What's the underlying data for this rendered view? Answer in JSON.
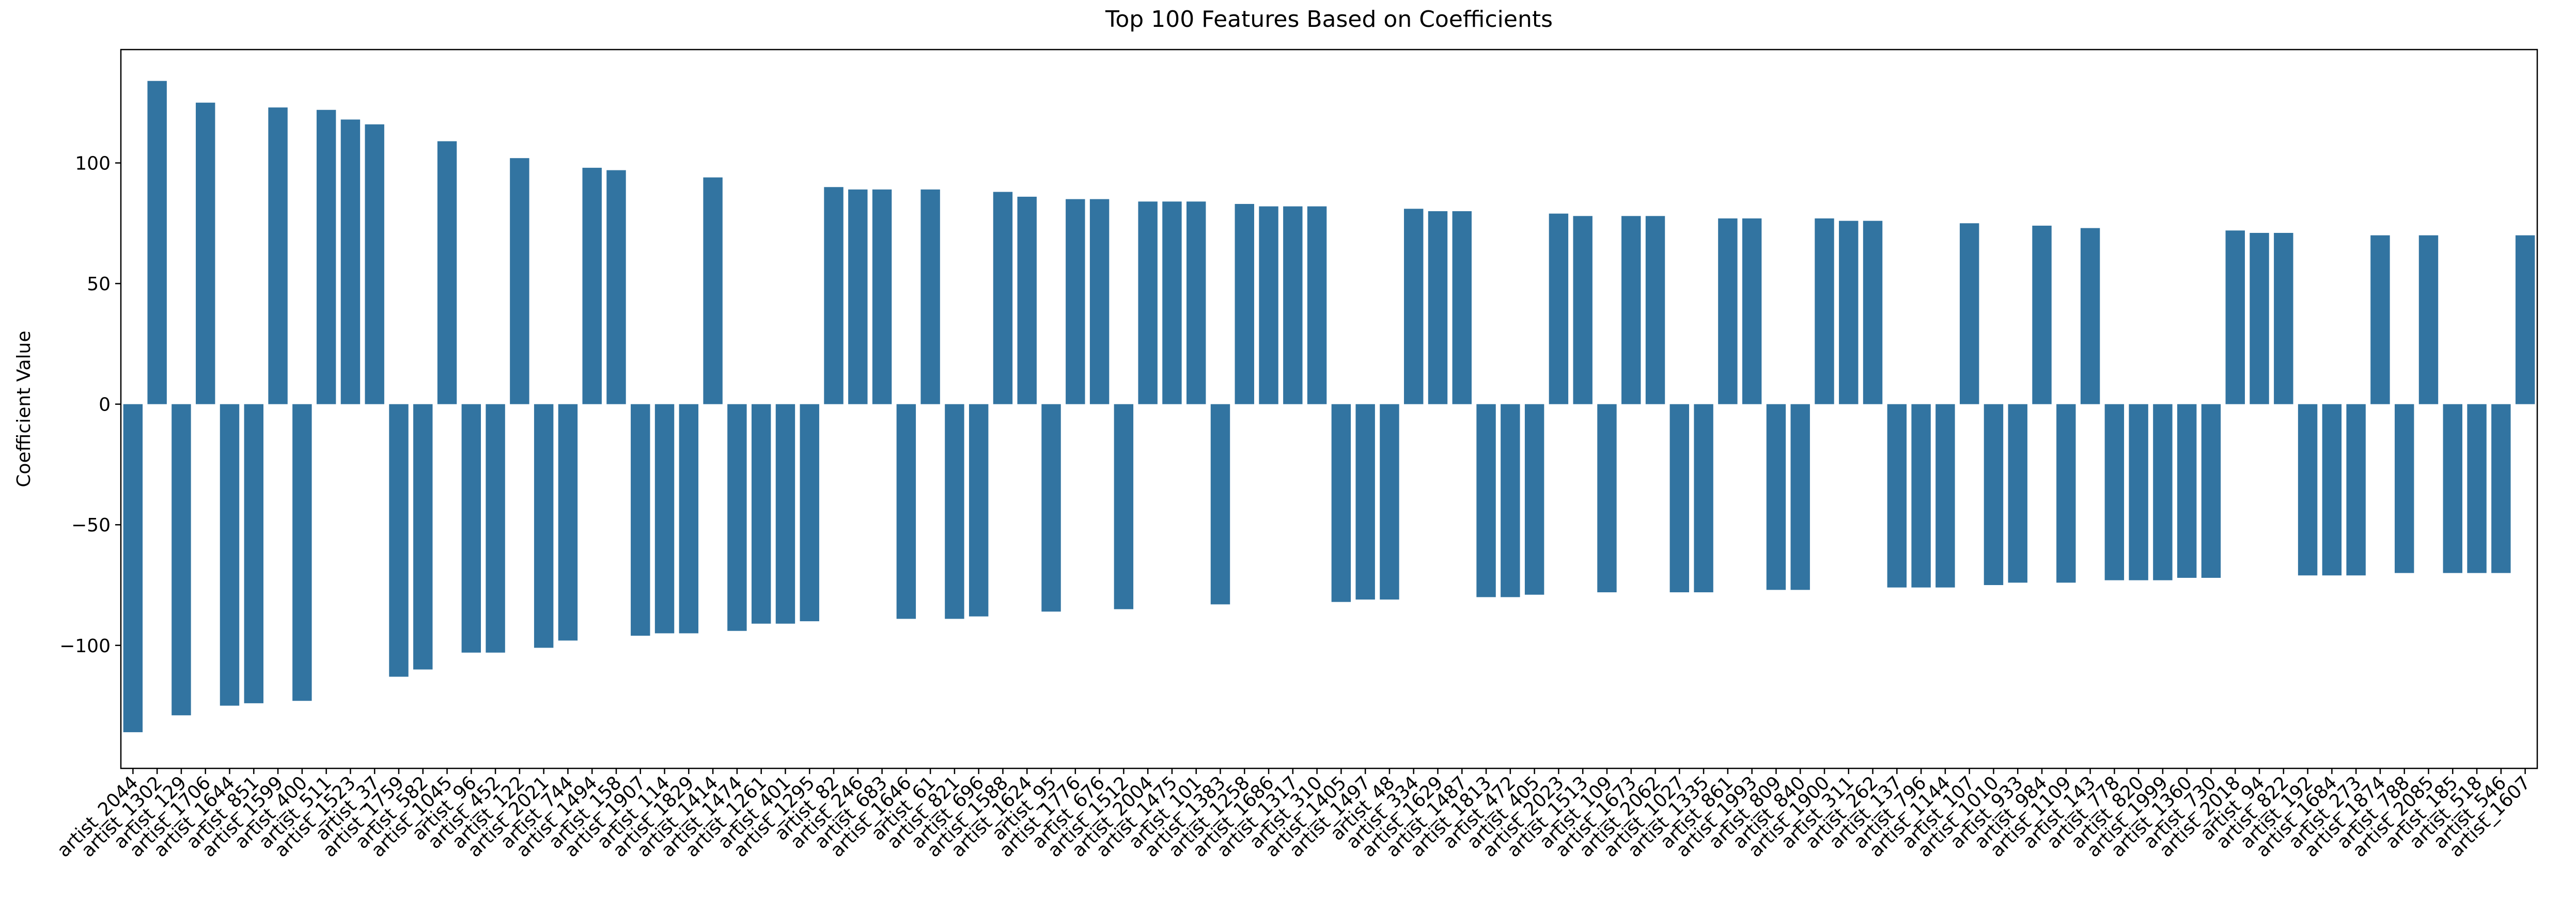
{
  "chart_data": {
    "type": "bar",
    "title": "Top 100 Features Based on Coefficients",
    "y_label": "Coefficient Value",
    "color": "#3274a1",
    "categories": [
      "artist_2044",
      "artist_1302",
      "artist_129",
      "artist_1706",
      "artist_1644",
      "artist_851",
      "artist_1599",
      "artist_400",
      "artist_511",
      "artist_1523",
      "artist_37",
      "artist_1759",
      "artist_582",
      "artist_1045",
      "artist_96",
      "artist_452",
      "artist_122",
      "artist_2021",
      "artist_744",
      "artist_1494",
      "artist_158",
      "artist_1907",
      "artist_114",
      "artist_1829",
      "artist_1414",
      "artist_1474",
      "artist_1261",
      "artist_401",
      "artist_1295",
      "artist_82",
      "artist_246",
      "artist_683",
      "artist_1646",
      "artist_61",
      "artist_821",
      "artist_696",
      "artist_1588",
      "artist_1624",
      "artist_95",
      "artist_1776",
      "artist_676",
      "artist_1512",
      "artist_2004",
      "artist_1475",
      "artist_101",
      "artist_1383",
      "artist_1258",
      "artist_1686",
      "artist_1317",
      "artist_310",
      "artist_1405",
      "artist_1497",
      "artist_48",
      "artist_334",
      "artist_1629",
      "artist_1487",
      "artist_1813",
      "artist_472",
      "artist_405",
      "artist_2023",
      "artist_1513",
      "artist_109",
      "artist_1673",
      "artist_2062",
      "artist_1027",
      "artist_1335",
      "artist_861",
      "artist_1993",
      "artist_809",
      "artist_840",
      "artist_1900",
      "artist_311",
      "artist_262",
      "artist_137",
      "artist_796",
      "artist_1144",
      "artist_107",
      "artist_1010",
      "artist_933",
      "artist_984",
      "artist_1109",
      "artist_143",
      "artist_778",
      "artist_820",
      "artist_1999",
      "artist_1360",
      "artist_730",
      "artist_2018",
      "artist_94",
      "artist_822",
      "artist_192",
      "artist_1684",
      "artist_273",
      "artist_1874",
      "artist_788",
      "artist_2085",
      "artist_185",
      "artist_518",
      "artist_546",
      "artist_1607"
    ],
    "values": [
      -136,
      134,
      -129,
      125,
      -125,
      -124,
      123,
      -123,
      122,
      118,
      116,
      -113,
      -110,
      109,
      -103,
      -103,
      102,
      -101,
      -98,
      98,
      97,
      -96,
      -95,
      -95,
      94,
      -94,
      -91,
      -91,
      -90,
      90,
      89,
      89,
      -89,
      89,
      -89,
      -88,
      88,
      86,
      -86,
      85,
      85,
      -85,
      84,
      84,
      84,
      -83,
      83,
      82,
      82,
      82,
      -82,
      -81,
      -81,
      81,
      80,
      80,
      -80,
      -80,
      -79,
      79,
      78,
      -78,
      78,
      78,
      -78,
      -78,
      77,
      77,
      -77,
      -77,
      77,
      76,
      76,
      -76,
      -76,
      -76,
      75,
      -75,
      -74,
      74,
      -74,
      73,
      -73,
      -73,
      -73,
      -72,
      -72,
      72,
      71,
      71,
      -71,
      -71,
      -71,
      70,
      -70,
      70,
      -70,
      -70,
      -70,
      70
    ],
    "ylim": [
      -151,
      147
    ],
    "yticks": [
      {
        "value": -100,
        "label": "−100"
      },
      {
        "value": -50,
        "label": "−50"
      },
      0,
      50,
      100
    ]
  }
}
